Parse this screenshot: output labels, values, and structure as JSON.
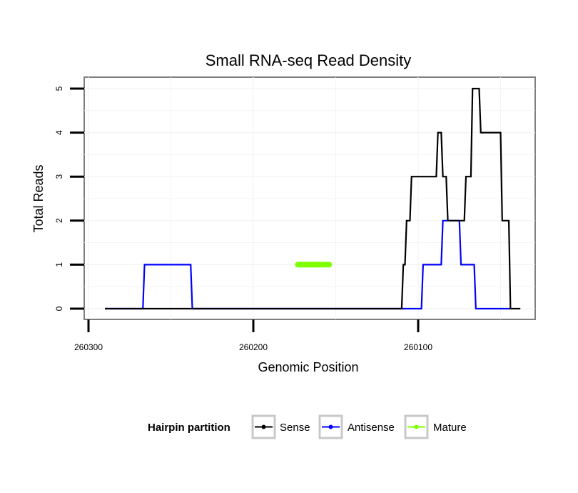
{
  "chart_data": {
    "type": "line",
    "title": "Small RNA-seq Read Density",
    "xlabel": "Genomic Position",
    "ylabel": "Total Reads",
    "x_reversed": true,
    "xlim": [
      260300,
      260030
    ],
    "ylim": [
      -0.2,
      5.2
    ],
    "x_ticks": [
      260300,
      260200,
      260100
    ],
    "x_tick_labels": [
      "260300",
      "260200",
      "260100"
    ],
    "y_ticks": [
      0,
      1,
      2,
      3,
      4,
      5
    ],
    "y_tick_labels": [
      "0",
      "1",
      "2",
      "3",
      "4",
      "5"
    ],
    "grid": true,
    "legend": {
      "title": "Hairpin partition",
      "position": "bottom",
      "entries": [
        "Sense",
        "Antisense",
        "Mature"
      ]
    },
    "series": [
      {
        "name": "Sense",
        "color": "#000000",
        "step": true,
        "x": [
          260290,
          260265,
          260264,
          260237,
          260236,
          260190,
          260189,
          260165,
          260164,
          260155,
          260154,
          260110,
          260109,
          260108,
          260107,
          260105,
          260104,
          260099,
          260098,
          260089,
          260088,
          260086,
          260085,
          260083,
          260082,
          260075,
          260074,
          260072,
          260071,
          260068,
          260067,
          260063,
          260062,
          260056,
          260055,
          260050,
          260049,
          260045,
          260044,
          260038
        ],
        "values": [
          0,
          0,
          0,
          0,
          0,
          0,
          0,
          0,
          0,
          0,
          0,
          0,
          1,
          1,
          2,
          2,
          3,
          3,
          3,
          3,
          4,
          4,
          3,
          3,
          2,
          2,
          2,
          2,
          3,
          3,
          5,
          5,
          4,
          4,
          4,
          4,
          2,
          2,
          0,
          0
        ]
      },
      {
        "name": "Antisense",
        "color": "#0000ff",
        "step": true,
        "x": [
          260290,
          260267,
          260266,
          260238,
          260237,
          260154,
          260153,
          260098,
          260097,
          260086,
          260085,
          260075,
          260074,
          260066,
          260065,
          260056,
          260055,
          260044
        ],
        "values": [
          0,
          0,
          1,
          1,
          0,
          0,
          0,
          0,
          1,
          1,
          2,
          2,
          1,
          1,
          0,
          0,
          0,
          0
        ]
      },
      {
        "name": "Mature",
        "color": "#7fff00",
        "step": true,
        "x": [
          260173,
          260172,
          260171,
          260170,
          260169,
          260168,
          260167,
          260166,
          260165,
          260164,
          260163,
          260162,
          260161,
          260160,
          260159,
          260158,
          260157,
          260156,
          260155,
          260154
        ],
        "values": [
          1,
          1,
          1,
          1,
          1,
          1,
          1,
          1,
          1,
          1,
          1,
          1,
          1,
          1,
          1,
          1,
          1,
          1,
          1,
          1
        ]
      }
    ]
  }
}
